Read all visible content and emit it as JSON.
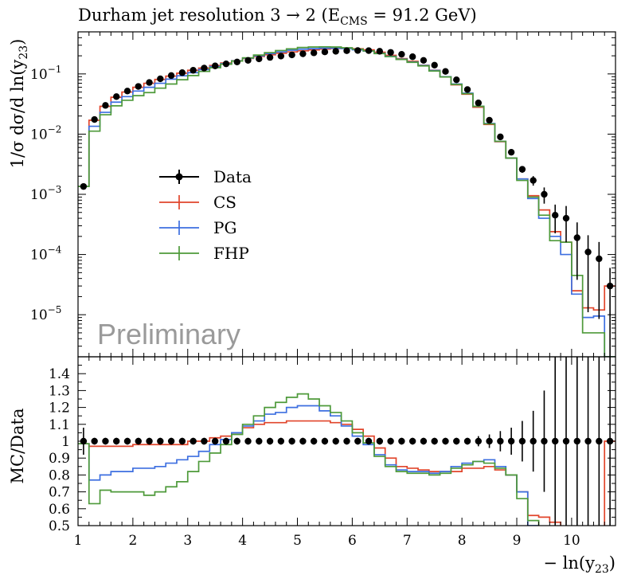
{
  "chart_data": {
    "type": "line",
    "title": "Durham jet resolution 3 → 2 (E",
    "title_sub": "CMS",
    "title_tail": " = 91.2 GeV)",
    "watermark": "Preliminary",
    "xlabel": "− ln(y",
    "xlabel_sub": "23",
    "xlabel_tail": ")",
    "xlim": [
      1.0,
      10.8
    ],
    "x_ticks": [
      "1",
      "2",
      "3",
      "4",
      "5",
      "6",
      "7",
      "8",
      "9",
      "10"
    ],
    "bin_edges": [
      1.0,
      1.2,
      1.4,
      1.6,
      1.8,
      2.0,
      2.2,
      2.4,
      2.6,
      2.8,
      3.0,
      3.2,
      3.4,
      3.6,
      3.8,
      4.0,
      4.2,
      4.4,
      4.6,
      4.8,
      5.0,
      5.2,
      5.4,
      5.6,
      5.8,
      6.0,
      6.2,
      6.4,
      6.6,
      6.8,
      7.0,
      7.2,
      7.4,
      7.6,
      7.8,
      8.0,
      8.2,
      8.4,
      8.6,
      8.8,
      9.0,
      9.2,
      9.4,
      9.6,
      9.8,
      10.0,
      10.2,
      10.4,
      10.6,
      10.8
    ],
    "upper": {
      "ylabel": "1/σ dσ/d ln(y",
      "ylabel_sub": "23",
      "ylabel_tail": ")",
      "log": true,
      "ylim": [
        2e-06,
        0.5
      ],
      "y_ticks": [
        {
          "value": 1e-05,
          "base": "10",
          "exp": "−5"
        },
        {
          "value": 0.0001,
          "base": "10",
          "exp": "−4"
        },
        {
          "value": 0.001,
          "base": "10",
          "exp": "−3"
        },
        {
          "value": 0.01,
          "base": "10",
          "exp": "−2"
        },
        {
          "value": 0.1,
          "base": "10",
          "exp": "−1"
        }
      ]
    },
    "lower": {
      "ylabel": "MC/Data",
      "ylim": [
        0.5,
        1.5
      ],
      "y_ticks": [
        "0.5",
        "0.6",
        "0.7",
        "0.8",
        "0.9",
        "1",
        "1.1",
        "1.2",
        "1.3",
        "1.4"
      ]
    },
    "legend": {
      "position": "middle-left",
      "entries": [
        "Data",
        "CS",
        "PG",
        "FHP"
      ]
    },
    "series": [
      {
        "name": "Data",
        "color": "#000000",
        "kind": "points",
        "values": [
          0.00135,
          0.0175,
          0.03,
          0.042,
          0.052,
          0.062,
          0.072,
          0.083,
          0.094,
          0.105,
          0.115,
          0.125,
          0.136,
          0.147,
          0.158,
          0.168,
          0.178,
          0.188,
          0.198,
          0.207,
          0.216,
          0.224,
          0.232,
          0.238,
          0.243,
          0.245,
          0.244,
          0.238,
          0.228,
          0.212,
          0.193,
          0.168,
          0.14,
          0.11,
          0.08,
          0.055,
          0.033,
          0.017,
          0.009,
          0.005,
          0.0026,
          0.0017,
          0.001,
          0.00045,
          0.0004,
          0.00019,
          0.00011,
          8.5e-05,
          3e-05,
          5e-05
        ],
        "rel_err": [
          0.08,
          0.02,
          0.02,
          0.02,
          0.02,
          0.02,
          0.02,
          0.02,
          0.02,
          0.02,
          0.02,
          0.02,
          0.02,
          0.02,
          0.02,
          0.02,
          0.02,
          0.02,
          0.02,
          0.02,
          0.02,
          0.02,
          0.02,
          0.02,
          0.02,
          0.02,
          0.02,
          0.02,
          0.02,
          0.02,
          0.02,
          0.02,
          0.02,
          0.02,
          0.02,
          0.02,
          0.03,
          0.04,
          0.06,
          0.08,
          0.12,
          0.18,
          0.3,
          0.5,
          0.6,
          0.8,
          0.9,
          0.9,
          1.0,
          1.0
        ],
        "ratio": [
          1,
          1,
          1,
          1,
          1,
          1,
          1,
          1,
          1,
          1,
          1,
          1,
          1,
          1,
          1,
          1,
          1,
          1,
          1,
          1,
          1,
          1,
          1,
          1,
          1,
          1,
          1,
          1,
          1,
          1,
          1,
          1,
          1,
          1,
          1,
          1,
          1,
          1,
          1,
          1,
          1,
          1,
          1,
          1,
          1,
          1,
          1,
          1,
          1,
          1
        ]
      },
      {
        "name": "CS",
        "color": "#e1452b",
        "kind": "hist",
        "values": [
          0.00135,
          0.017,
          0.029,
          0.041,
          0.05,
          0.06,
          0.07,
          0.081,
          0.092,
          0.103,
          0.115,
          0.125,
          0.138,
          0.152,
          0.166,
          0.181,
          0.195,
          0.208,
          0.22,
          0.232,
          0.242,
          0.251,
          0.259,
          0.264,
          0.267,
          0.262,
          0.251,
          0.229,
          0.204,
          0.18,
          0.162,
          0.139,
          0.115,
          0.09,
          0.066,
          0.046,
          0.028,
          0.0145,
          0.0075,
          0.004,
          0.0018,
          0.00095,
          0.00055,
          0.00024,
          0.00016,
          2.5e-05,
          1.3e-05,
          1.2e-05,
          3e-05,
          3.7e-05
        ],
        "ratio": [
          0.985,
          0.97,
          0.97,
          0.97,
          0.97,
          0.98,
          0.98,
          0.98,
          0.98,
          0.98,
          1.0,
          1.0,
          1.02,
          1.03,
          1.05,
          1.08,
          1.1,
          1.11,
          1.11,
          1.12,
          1.12,
          1.12,
          1.12,
          1.11,
          1.1,
          1.07,
          1.03,
          0.96,
          0.9,
          0.85,
          0.84,
          0.83,
          0.82,
          0.82,
          0.82,
          0.84,
          0.84,
          0.85,
          0.83,
          0.8,
          0.7,
          0.56,
          0.55,
          0.52,
          0.42,
          0.13,
          0.12,
          0.14,
          1.0,
          0.74
        ]
      },
      {
        "name": "PG",
        "color": "#3d6fe0",
        "kind": "hist",
        "values": [
          0.00135,
          0.0135,
          0.023,
          0.034,
          0.042,
          0.052,
          0.06,
          0.07,
          0.082,
          0.093,
          0.105,
          0.118,
          0.133,
          0.148,
          0.165,
          0.183,
          0.2,
          0.218,
          0.232,
          0.248,
          0.258,
          0.263,
          0.268,
          0.268,
          0.265,
          0.252,
          0.24,
          0.22,
          0.196,
          0.176,
          0.158,
          0.138,
          0.114,
          0.09,
          0.068,
          0.048,
          0.029,
          0.015,
          0.0076,
          0.004,
          0.0018,
          0.00085,
          0.0004,
          0.0002,
          0.0001,
          2.2e-05,
          9e-06,
          9.5e-06,
          2e-06,
          2e-06
        ],
        "ratio": [
          0.985,
          0.77,
          0.8,
          0.82,
          0.82,
          0.84,
          0.84,
          0.85,
          0.87,
          0.89,
          0.91,
          0.94,
          0.98,
          1.01,
          1.05,
          1.09,
          1.12,
          1.16,
          1.17,
          1.2,
          1.21,
          1.21,
          1.18,
          1.15,
          1.09,
          1.03,
          0.98,
          0.92,
          0.86,
          0.83,
          0.82,
          0.82,
          0.81,
          0.82,
          0.85,
          0.87,
          0.88,
          0.89,
          0.85,
          0.8,
          0.7,
          0.5,
          0.4,
          0.44,
          0.25,
          0.11,
          0.08,
          0.11,
          0.0,
          0.0
        ]
      },
      {
        "name": "FHP",
        "color": "#4e9a3a",
        "kind": "hist",
        "values": [
          0.00135,
          0.0112,
          0.021,
          0.0295,
          0.0365,
          0.0435,
          0.049,
          0.058,
          0.068,
          0.08,
          0.094,
          0.11,
          0.127,
          0.145,
          0.164,
          0.185,
          0.206,
          0.226,
          0.245,
          0.261,
          0.275,
          0.28,
          0.282,
          0.28,
          0.272,
          0.258,
          0.241,
          0.218,
          0.194,
          0.174,
          0.156,
          0.136,
          0.112,
          0.089,
          0.067,
          0.047,
          0.029,
          0.0148,
          0.0076,
          0.004,
          0.0017,
          0.0009,
          0.00045,
          0.00017,
          0.00016,
          4.5e-05,
          5e-06,
          5e-06,
          2e-06,
          2e-06
        ],
        "ratio": [
          0.985,
          0.63,
          0.71,
          0.7,
          0.7,
          0.7,
          0.68,
          0.7,
          0.73,
          0.76,
          0.82,
          0.88,
          0.93,
          0.98,
          1.04,
          1.1,
          1.15,
          1.2,
          1.23,
          1.26,
          1.28,
          1.25,
          1.21,
          1.17,
          1.12,
          1.05,
          0.99,
          0.91,
          0.85,
          0.82,
          0.81,
          0.81,
          0.8,
          0.81,
          0.84,
          0.86,
          0.88,
          0.87,
          0.84,
          0.8,
          0.66,
          0.53,
          0.45,
          0.38,
          0.4,
          0.24,
          0.0,
          0.0,
          0.0,
          0.0
        ]
      }
    ]
  }
}
